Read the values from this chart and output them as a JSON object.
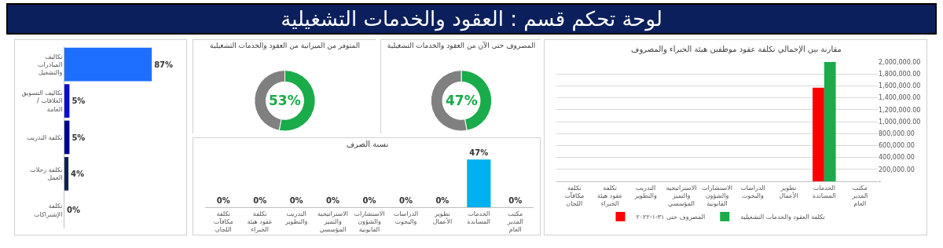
{
  "chart_data": [
    {
      "type": "other",
      "title": "لوحة تحكم  قسم : العقود والخدمات التشغيلية"
    },
    {
      "type": "bar",
      "orientation": "horizontal",
      "categories": [
        "تكاليف المبادرات والتشغيل",
        "تكاليف التسويق / العلاقات العامة",
        "تكلفة التدريب",
        "تكلفة رحلات العمل",
        "تكلفة الإشتراكات"
      ],
      "values": [
        87,
        5,
        5,
        4,
        0
      ],
      "colors": [
        "#1e6fff",
        "#0b0bcf",
        "#00008f",
        "#0f2250",
        "#0f2250"
      ],
      "value_labels": [
        "87%",
        "5%",
        "5%",
        "4%",
        "0%"
      ],
      "tick_labels": "y"
    },
    {
      "type": "donut",
      "title": "المتوفر من الميزانية من العقود والخدمات التشغيلية",
      "categories": [
        null,
        null
      ],
      "values": [
        53,
        47
      ],
      "colors": [
        "#1aab4b",
        "#808080"
      ],
      "annotations": [
        "53%"
      ]
    },
    {
      "type": "donut",
      "title": "المصروف حتى الآن من العقود والخدمات التشغيلية",
      "categories": [
        null,
        null
      ],
      "values": [
        47,
        53
      ],
      "colors": [
        "#1aab4b",
        "#808080"
      ],
      "annotations": [
        "47%"
      ]
    },
    {
      "type": "bar",
      "title": "نسبة الصرف",
      "categories": [
        "تكلفة مكافآت اللجان",
        "تكلفة عقود هيئة الخبراء",
        "التدريب والتطوير",
        "الاستراتيجية والتميز المؤسسي",
        "الاستشارات والشؤون القانونية",
        "الدراسات والبحوث",
        "تطوير الأعمال",
        "الخدمات المساندة",
        "مكتب المدير العام"
      ],
      "values": [
        0,
        0,
        0,
        0,
        0,
        0,
        0,
        47,
        0
      ],
      "color": "#00b0f0",
      "value_labels": [
        "0%",
        "0%",
        "0%",
        "0%",
        "0%",
        "0%",
        "0%",
        "47%",
        "0%"
      ],
      "tick_labels": "x"
    },
    {
      "type": "bar",
      "title": "مقارنة بين الإجمالي تكلفة عقود موظفين هيئة الخبراء والمصروف",
      "categories": [
        "تكلفة مكافآت اللجان",
        "تكلفة عقود هيئة الخبراء",
        "التدريب والتطوير",
        "الاستراتيجية والتميز المؤسسي",
        "الاستشارات والشؤون القانونية",
        "الدراسات والبحوث",
        "تطوير الأعمال",
        "الخدمات المساندة",
        "مكتب المدير العام"
      ],
      "series": [
        {
          "name": "المصروف حتى ٣١-١-٢٠٢٢",
          "color": "#ff0000",
          "values": [
            0,
            0,
            0,
            0,
            0,
            0,
            0,
            1570000,
            0
          ]
        },
        {
          "name": "تكلفة العقود والخدمات التشغيلية",
          "color": "#1aab4b",
          "values": [
            0,
            0,
            0,
            0,
            0,
            0,
            0,
            2000000,
            0
          ]
        }
      ],
      "ylim": [
        0,
        2000000
      ],
      "yticks": [
        {
          "value": 0,
          "label": "-"
        },
        {
          "value": 200000,
          "label": "200,000.00"
        },
        {
          "value": 400000,
          "label": "400,000.00"
        },
        {
          "value": 600000,
          "label": "600,000.00"
        },
        {
          "value": 800000,
          "label": "800,000.00"
        },
        {
          "value": 1000000,
          "label": "1,000,000.00"
        },
        {
          "value": 1200000,
          "label": "1,200,000.00"
        },
        {
          "value": 1400000,
          "label": "1,400,000.00"
        },
        {
          "value": 1600000,
          "label": "1,600,000.00"
        },
        {
          "value": 1800000,
          "label": "1,800,000.00"
        },
        {
          "value": 2000000,
          "label": "2,000,000.00"
        }
      ],
      "grid": "y",
      "legend": "bottom"
    }
  ]
}
